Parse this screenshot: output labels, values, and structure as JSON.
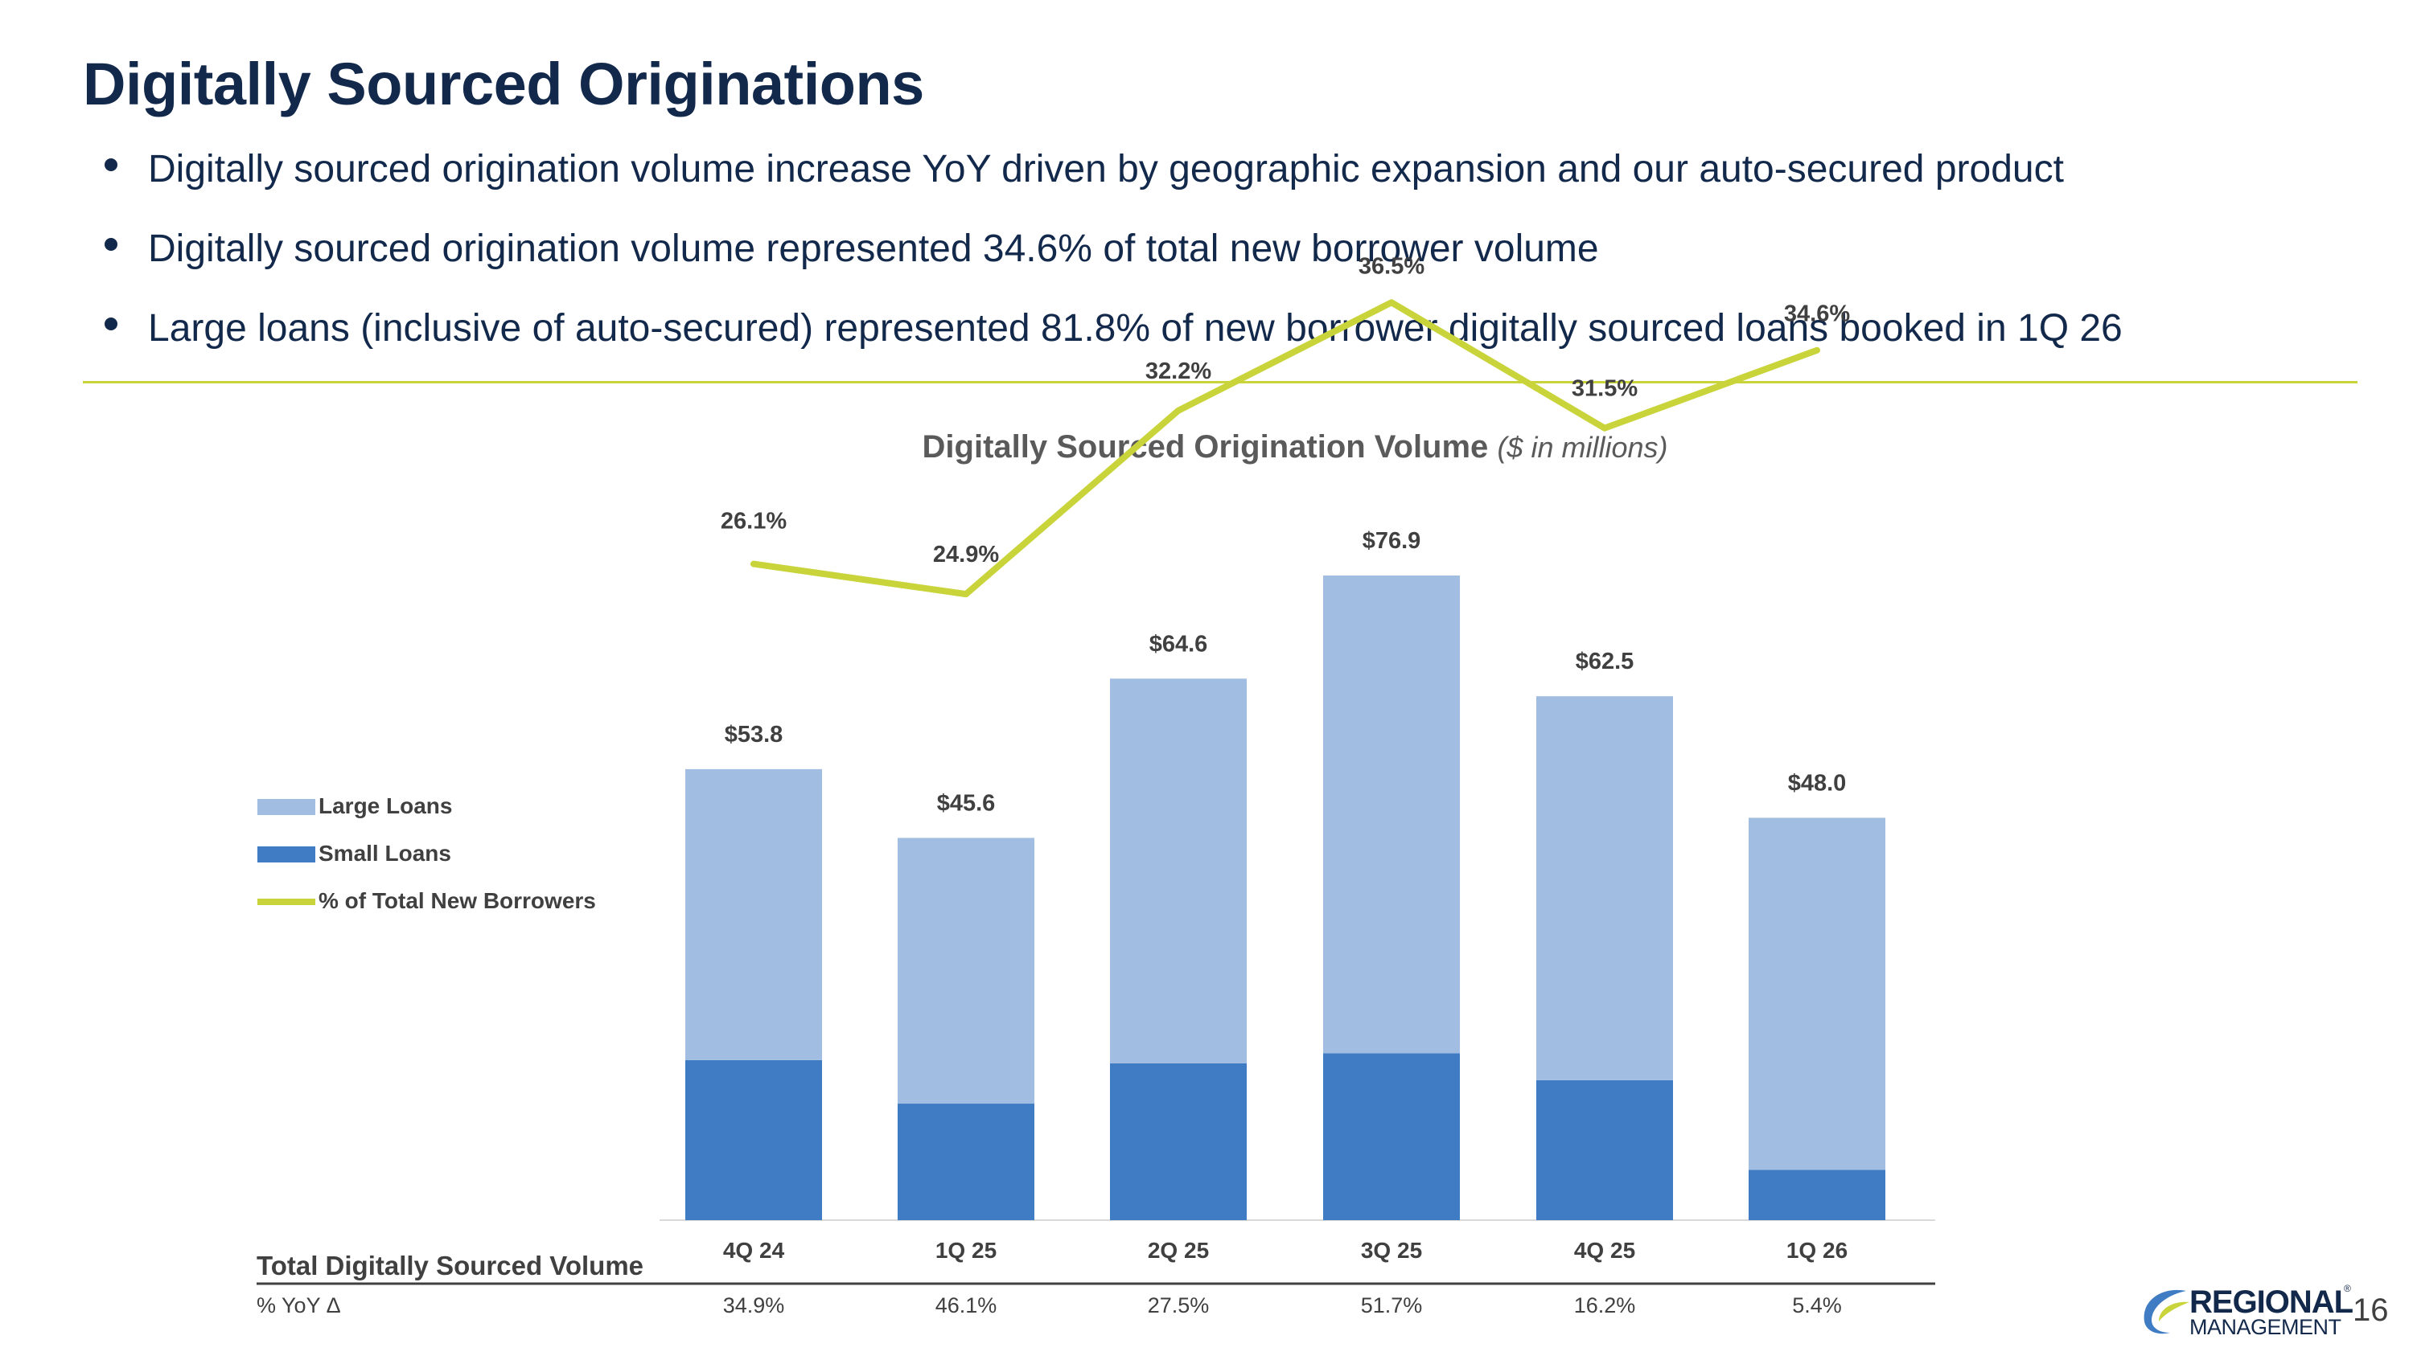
{
  "page": {
    "title": "Digitally Sourced Originations",
    "bullets": [
      "Digitally sourced origination volume increase YoY driven by geographic expansion and our auto-secured product",
      "Digitally sourced origination volume represented 34.6% of total new borrower volume",
      "Large loans (inclusive of auto-secured) represented 81.8% of new borrower digitally sourced loans booked in 1Q 26"
    ],
    "slide_number": "16",
    "logo": {
      "line1": "REGIONAL",
      "line2": "MANAGEMENT",
      "tm": "®"
    }
  },
  "colors": {
    "title": "#13294b",
    "large_loans": "#a1bde1",
    "small_loans": "#3f7cc4",
    "pct_line": "#c9d43a",
    "rule": "#c9d43a"
  },
  "chart_data": {
    "type": "bar",
    "stacked": true,
    "title": "Digitally Sourced Origination Volume",
    "subtitle": "($ in millions)",
    "categories": [
      "4Q 24",
      "1Q 25",
      "2Q 25",
      "3Q 25",
      "4Q 25",
      "1Q 26"
    ],
    "totals": [
      53.8,
      45.6,
      64.6,
      76.9,
      62.5,
      48.0
    ],
    "total_labels": [
      "$53.8",
      "$45.6",
      "$64.6",
      "$76.9",
      "$62.5",
      "$48.0"
    ],
    "series": [
      {
        "name": "Large Loans",
        "type": "bar",
        "color": "#a1bde1",
        "values": [
          34.7,
          31.7,
          45.9,
          57.0,
          45.8,
          42.0
        ]
      },
      {
        "name": "Small Loans",
        "type": "bar",
        "color": "#3f7cc4",
        "values": [
          19.1,
          13.9,
          18.7,
          19.9,
          16.7,
          6.0
        ]
      },
      {
        "name": "% of Total New Borrowers",
        "type": "line",
        "color": "#c9d43a",
        "axis": "secondary",
        "values": [
          26.1,
          24.9,
          32.2,
          36.5,
          31.5,
          34.6
        ],
        "labels": [
          "26.1%",
          "24.9%",
          "32.2%",
          "36.5%",
          "31.5%",
          "34.6%"
        ]
      }
    ],
    "ylim": [
      0,
      85
    ],
    "y2lim": [
      0,
      65
    ],
    "legend_position": "left",
    "grid": false,
    "table": {
      "row1_label": "Total Digitally Sourced Volume",
      "row2_label": "% YoY Δ",
      "yoy": [
        "34.9%",
        "46.1%",
        "27.5%",
        "51.7%",
        "16.2%",
        "5.4%"
      ]
    }
  }
}
